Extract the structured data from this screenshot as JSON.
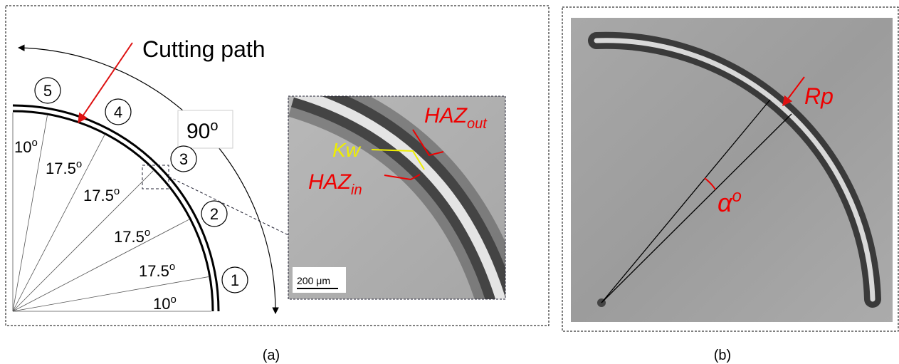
{
  "panel_a": {
    "cutting_path": "Cutting path",
    "zones": [
      "1",
      "2",
      "3",
      "4",
      "5"
    ],
    "sweep": {
      "text": "90",
      "sup": "o"
    },
    "angles": [
      {
        "text": "10",
        "sup": "o"
      },
      {
        "text": "17.5",
        "sup": "o"
      },
      {
        "text": "17.5",
        "sup": "o"
      },
      {
        "text": "17.5",
        "sup": "o"
      },
      {
        "text": "17.5",
        "sup": "o"
      },
      {
        "text": "10",
        "sup": "o"
      }
    ],
    "inset": {
      "kw": "Kw",
      "haz_out": {
        "text": "HAZ",
        "sub": "out"
      },
      "haz_in": {
        "text": "HAZ",
        "sub": "in"
      },
      "scale_bar": "200 μm"
    },
    "caption": "(a)"
  },
  "panel_b": {
    "rp": "Rp",
    "alpha": {
      "text": "α",
      "sup": "o"
    },
    "caption": "(b)"
  }
}
